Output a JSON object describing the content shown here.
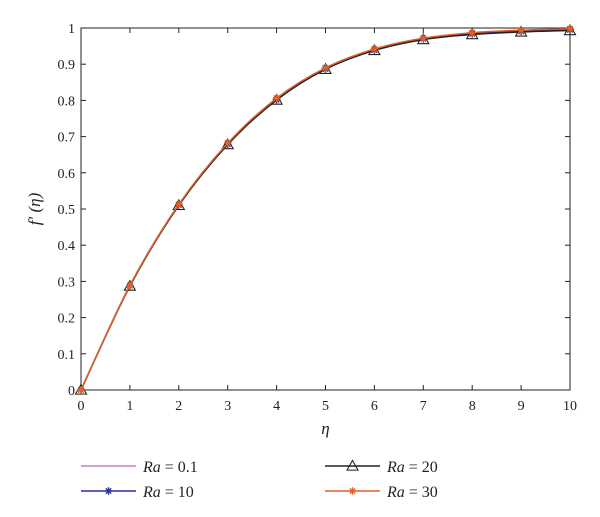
{
  "chart_data": {
    "type": "line",
    "title": "",
    "xlabel": "η",
    "ylabel": "f′ (η)",
    "xlim": [
      0,
      10
    ],
    "ylim": [
      0,
      1
    ],
    "xticks": [
      "0",
      "1",
      "2",
      "3",
      "4",
      "5",
      "6",
      "7",
      "8",
      "9",
      "10"
    ],
    "yticks": [
      "0",
      "0.1",
      "0.2",
      "0.3",
      "0.4",
      "0.5",
      "0.6",
      "0.7",
      "0.8",
      "0.9",
      "1"
    ],
    "grid": false,
    "legend_position": "bottom",
    "x": [
      0,
      1,
      2,
      3,
      4,
      5,
      6,
      7,
      8,
      9,
      10
    ],
    "series": [
      {
        "name_var": "Ra",
        "name_rest": " = 0.1",
        "color": "#c77ec4",
        "marker": "none",
        "values": [
          0,
          0.287,
          0.511,
          0.68,
          0.804,
          0.888,
          0.94,
          0.971,
          0.985,
          0.993,
          0.996
        ]
      },
      {
        "name_var": "Ra",
        "name_rest": " = 10",
        "color": "#2b2f9a",
        "marker": "star",
        "values": [
          0,
          0.288,
          0.511,
          0.679,
          0.802,
          0.887,
          0.939,
          0.97,
          0.984,
          0.991,
          0.995
        ]
      },
      {
        "name_var": "Ra",
        "name_rest": " = 20",
        "color": "#222222",
        "marker": "triangle",
        "values": [
          0,
          0.287,
          0.51,
          0.678,
          0.801,
          0.886,
          0.938,
          0.968,
          0.982,
          0.989,
          0.993
        ]
      },
      {
        "name_var": "Ra",
        "name_rest": " = 30",
        "color": "#e2612a",
        "marker": "star",
        "values": [
          0,
          0.289,
          0.513,
          0.682,
          0.806,
          0.89,
          0.942,
          0.972,
          0.987,
          0.994,
          0.998
        ]
      }
    ]
  }
}
